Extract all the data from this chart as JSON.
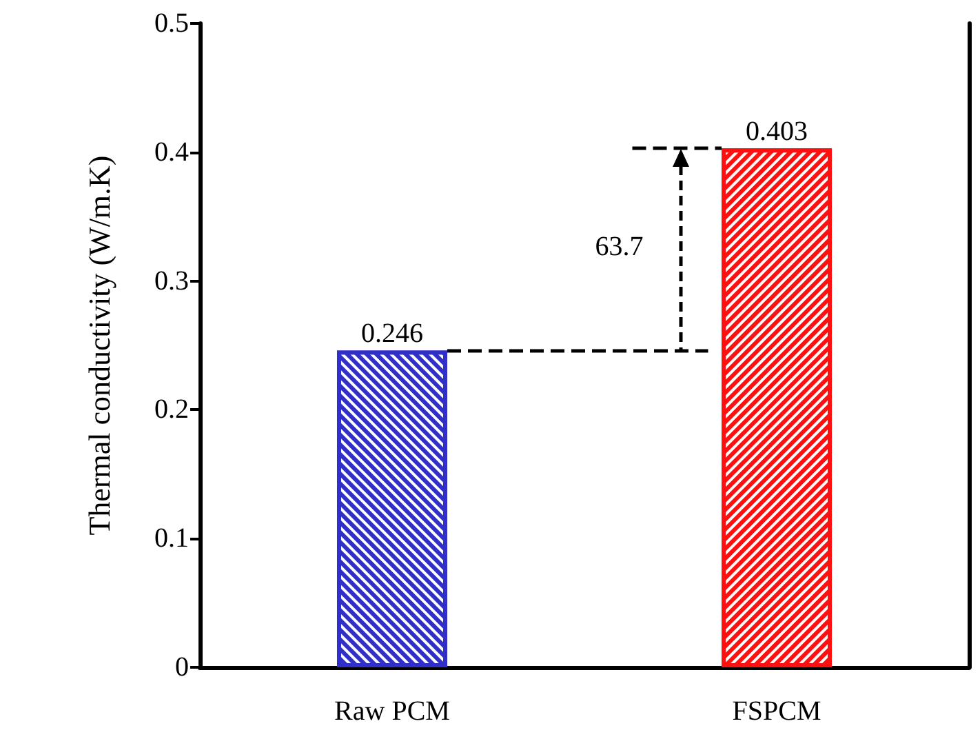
{
  "chart_data": {
    "type": "bar",
    "ylabel": "Thermal conductivity (W/m.K)",
    "categories": [
      "Raw PCM",
      "FSPCM"
    ],
    "values": [
      0.246,
      0.403
    ],
    "colors": [
      "#3030c8",
      "#ff1010"
    ],
    "data_labels": true,
    "ylim": [
      0,
      0.5
    ],
    "yticks": [
      0,
      0.1,
      0.2,
      0.3,
      0.4,
      0.5
    ],
    "ref_lines": [
      {
        "axis": "y",
        "value": 0.246,
        "line_style": "dashed",
        "color": "#000000"
      },
      {
        "axis": "y",
        "value": 0.403,
        "line_style": "dashed",
        "color": "#000000"
      }
    ],
    "annotations": [
      "63.7"
    ]
  }
}
